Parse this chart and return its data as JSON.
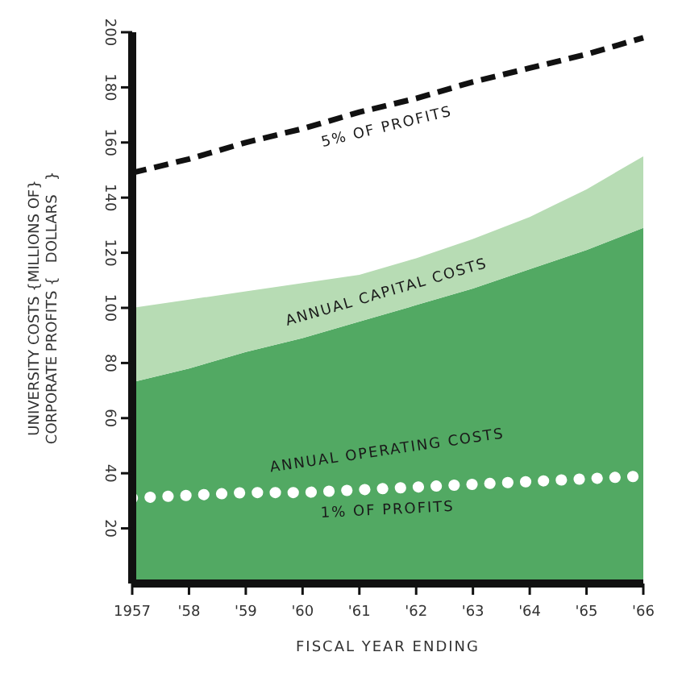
{
  "chart_data": {
    "type": "area",
    "stacked": true,
    "xlabel": "FISCAL YEAR ENDING",
    "ylabel": "UNIVERSITY COSTS {MILLIONS OF}\nCORPORATE PROFITS {   DOLLARS   }",
    "x": [
      1957,
      1958,
      1959,
      1960,
      1961,
      1962,
      1963,
      1964,
      1965,
      1966
    ],
    "series": [
      {
        "name": "ANNUAL OPERATING COSTS",
        "color": "#52a963",
        "values": [
          73,
          78,
          84,
          89,
          95,
          101,
          107,
          114,
          121,
          129
        ]
      },
      {
        "name": "ANNUAL CAPITAL COSTS",
        "color": "#b7dcb4",
        "values": [
          27,
          25,
          22,
          20,
          17,
          17,
          18,
          19,
          22,
          26
        ]
      },
      {
        "name": "5% OF PROFITS",
        "type": "line",
        "color": "#111111",
        "line_style": "dashed",
        "values": [
          149,
          154,
          160,
          165,
          171,
          176,
          182,
          187,
          192,
          198
        ]
      },
      {
        "name": "1% OF PROFITS",
        "type": "line",
        "color": "#ffffff",
        "line_style": "dotted",
        "values": [
          31,
          32,
          33,
          33,
          34,
          35,
          36,
          37,
          38,
          39
        ]
      }
    ],
    "xlim": [
      1957,
      1966
    ],
    "xticks": [
      1957,
      {
        "value": 1958,
        "label": "'58"
      },
      {
        "value": 1959,
        "label": "'59"
      },
      {
        "value": 1960,
        "label": "'60"
      },
      {
        "value": 1961,
        "label": "'61"
      },
      {
        "value": 1962,
        "label": "'62"
      },
      {
        "value": 1963,
        "label": "'63"
      },
      {
        "value": 1964,
        "label": "'64"
      },
      {
        "value": 1965,
        "label": "'65"
      },
      {
        "value": 1966,
        "label": "'66"
      }
    ],
    "ylim": [
      0,
      200
    ],
    "yticks": [
      20,
      40,
      60,
      80,
      100,
      120,
      140,
      160,
      180,
      200
    ],
    "grid": false
  }
}
